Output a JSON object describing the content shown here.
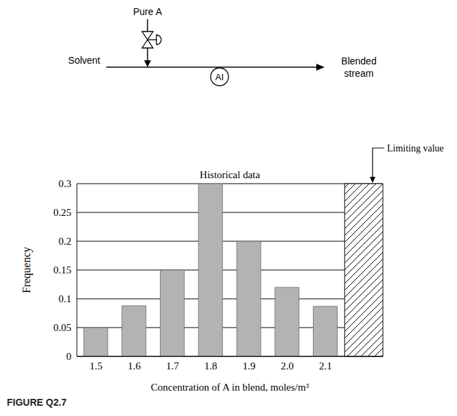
{
  "chart_data": {
    "type": "bar",
    "title": "Historical data",
    "categories": [
      "1.5",
      "1.6",
      "1.7",
      "1.8",
      "1.9",
      "2.0",
      "2.1",
      null
    ],
    "values": [
      0.05,
      0.088,
      0.15,
      0.3,
      0.2,
      0.12,
      0.087,
      null
    ],
    "color": "#b3b3b3",
    "xlabel": "Concentration of A in blend, moles/m³",
    "ylabel": "Frequency",
    "ylim": [
      0,
      0.3
    ],
    "yticks": [
      0,
      0.05,
      0.1,
      0.15,
      0.2,
      0.25,
      0.3
    ],
    "grid": true,
    "annotations": [
      "Limiting value"
    ]
  },
  "diagram": {
    "inlet": "Pure A",
    "feed": "Solvent",
    "outlet": "Blended stream",
    "analyzer": "AI"
  },
  "caption": "FIGURE Q2.7"
}
